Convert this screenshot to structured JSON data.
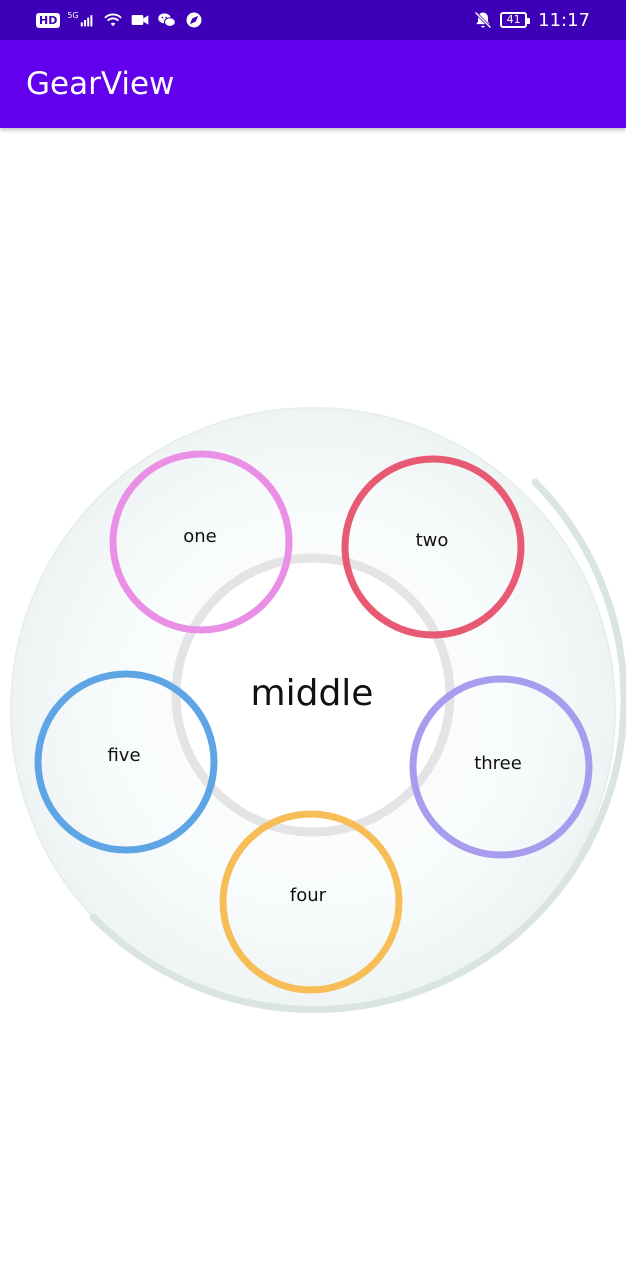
{
  "status_bar": {
    "hd_badge": "HD",
    "network_label": "5G",
    "battery_level": "41",
    "time": "11:17",
    "icons": [
      "hd-icon",
      "signal-icon",
      "wifi-icon",
      "video-icon",
      "wechat-icon",
      "browser-icon",
      "bell-off-icon",
      "battery-icon"
    ]
  },
  "app_bar": {
    "title": "GearView"
  },
  "gear": {
    "center_label": "middle",
    "items": [
      {
        "label": "one",
        "color": "#e98fe6"
      },
      {
        "label": "two",
        "color": "#e85a74"
      },
      {
        "label": "three",
        "color": "#a79ced"
      },
      {
        "label": "four",
        "color": "#f7bd56"
      },
      {
        "label": "five",
        "color": "#5ea5e6"
      }
    ],
    "outer_ring_color": "#d9e4e3",
    "middle_ring_color": "#e4e4e6"
  }
}
